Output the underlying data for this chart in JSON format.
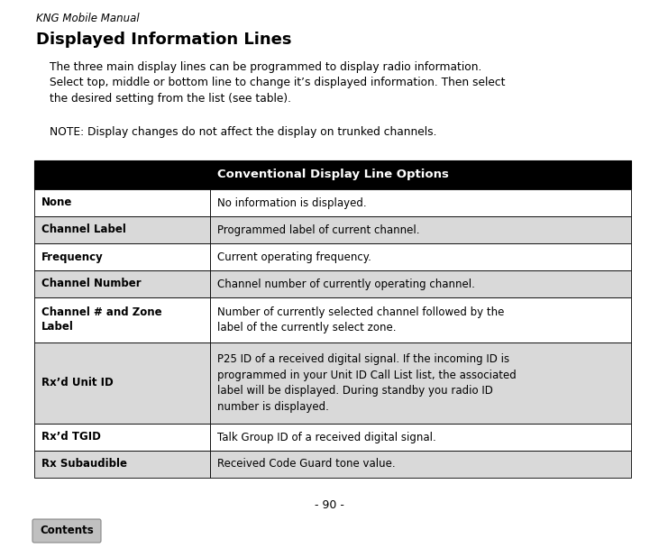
{
  "page_header": "KNG Mobile Manual",
  "section_title": "Displayed Information Lines",
  "intro_text": "The three main display lines can be programmed to display radio information.\nSelect top, middle or bottom line to change it’s displayed information. Then select\nthe desired setting from the list (see table).",
  "note_text": "NOTE: Display changes do not affect the display on trunked channels.",
  "table_header": "Conventional Display Line Options",
  "table_header_bg": "#000000",
  "table_header_fg": "#ffffff",
  "rows": [
    {
      "label": "None",
      "description": "No information is displayed.",
      "bg": "#ffffff"
    },
    {
      "label": "Channel Label",
      "description": "Programmed label of current channel.",
      "bg": "#d9d9d9"
    },
    {
      "label": "Frequency",
      "description": "Current operating frequency.",
      "bg": "#ffffff"
    },
    {
      "label": "Channel Number",
      "description": "Channel number of currently operating channel.",
      "bg": "#d9d9d9"
    },
    {
      "label": "Channel # and Zone\nLabel",
      "description": "Number of currently selected channel followed by the\nlabel of the currently select zone.",
      "bg": "#ffffff"
    },
    {
      "label": "Rx’d Unit ID",
      "description": "P25 ID of a received digital signal. If the incoming ID is\nprogrammed in your Unit ID Call List list, the associated\nlabel will be displayed. During standby you radio ID\nnumber is displayed.",
      "bg": "#d9d9d9"
    },
    {
      "label": "Rx’d TGID",
      "description": "Talk Group ID of a received digital signal.",
      "bg": "#ffffff"
    },
    {
      "label": "Rx Subaudible",
      "description": "Received Code Guard tone value.",
      "bg": "#d9d9d9"
    }
  ],
  "footer_text": "- 90 -",
  "contents_label": "Contents",
  "contents_bg": "#c0c0c0",
  "bg_color": "#ffffff",
  "fig_width": 7.31,
  "fig_height": 6.08,
  "dpi": 100
}
